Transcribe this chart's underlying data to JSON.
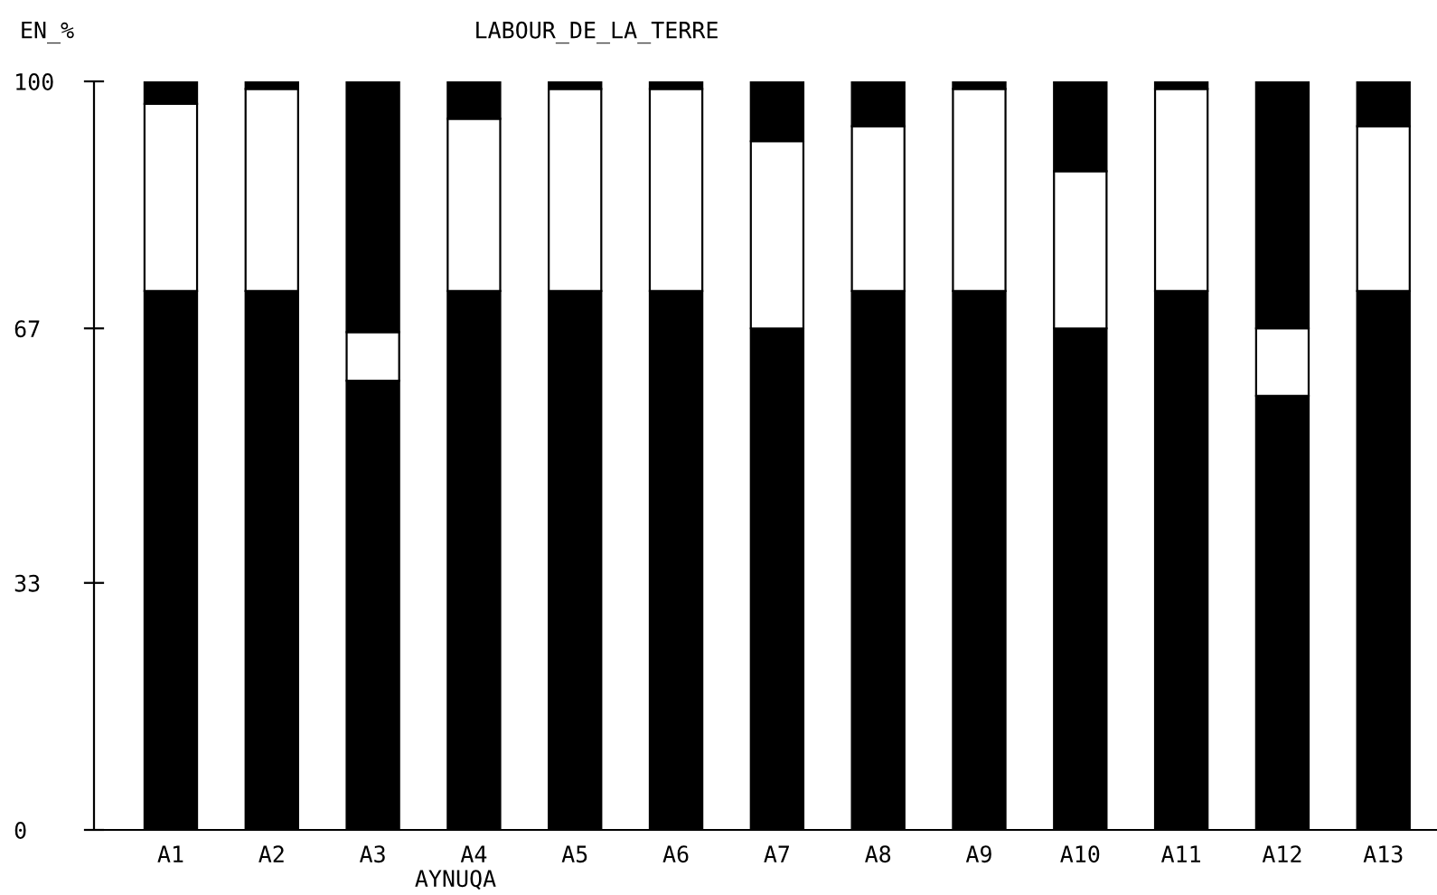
{
  "chart_data": {
    "type": "bar",
    "stacked": true,
    "title": "LABOUR_DE_LA_TERRE",
    "ylabel": "EN_%",
    "xlabel": "AYNUQA",
    "categories": [
      "A1",
      "A2",
      "A3",
      "A4",
      "A5",
      "A6",
      "A7",
      "A8",
      "A9",
      "A10",
      "A11",
      "A12",
      "A13"
    ],
    "series": [
      {
        "color": "#000000",
        "values": [
          72,
          72,
          60,
          72,
          72,
          72,
          67,
          72,
          72,
          67,
          72,
          58,
          72
        ]
      },
      {
        "color": "#ffffff",
        "values": [
          25,
          27,
          6.5,
          23,
          27,
          27,
          25,
          22,
          27,
          21,
          27,
          9,
          22
        ]
      },
      {
        "color": "#000000",
        "values": [
          3,
          1,
          33.5,
          5,
          1,
          1,
          8,
          6,
          1,
          12,
          1,
          33,
          6
        ]
      }
    ],
    "ylim": [
      0,
      100
    ],
    "yticks": [
      0,
      33,
      67,
      100
    ]
  }
}
